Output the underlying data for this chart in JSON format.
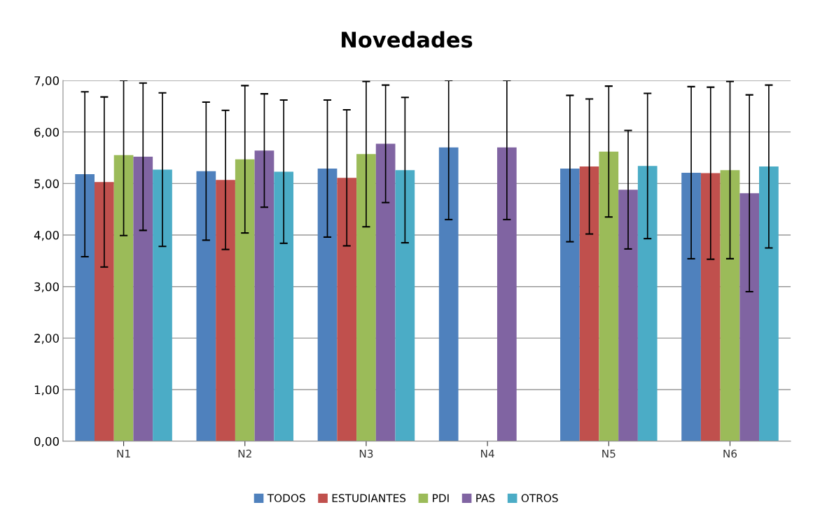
{
  "chart_data": {
    "type": "bar",
    "title": "Novedades",
    "categories": [
      "N1",
      "N2",
      "N3",
      "N4",
      "N5",
      "N6"
    ],
    "series": [
      {
        "name": "TODOS",
        "color": "#4f81bd",
        "values": [
          5.18,
          5.24,
          5.29,
          5.7,
          5.29,
          5.21
        ],
        "errors": [
          1.6,
          1.34,
          1.33,
          [
            4.3,
            7.0
          ],
          1.42,
          1.67
        ]
      },
      {
        "name": "ESTUDIANTES",
        "color": "#c0504d",
        "values": [
          5.03,
          5.07,
          5.11,
          null,
          5.33,
          5.2
        ],
        "errors": [
          1.65,
          1.35,
          1.32,
          null,
          1.31,
          1.67
        ]
      },
      {
        "name": "PDI",
        "color": "#9bbb59",
        "values": [
          5.55,
          5.47,
          5.57,
          null,
          5.62,
          5.26
        ],
        "errors": [
          [
            3.99,
            7.0
          ],
          1.43,
          1.41,
          null,
          1.27,
          1.72
        ]
      },
      {
        "name": "PAS",
        "color": "#8064a2",
        "values": [
          5.52,
          5.64,
          5.77,
          5.7,
          4.88,
          4.81
        ],
        "errors": [
          1.43,
          1.1,
          1.14,
          [
            4.3,
            7.0
          ],
          1.15,
          1.91
        ]
      },
      {
        "name": "OTROS",
        "color": "#4bacc6",
        "values": [
          5.27,
          5.23,
          5.26,
          null,
          5.34,
          5.33
        ],
        "errors": [
          1.49,
          1.39,
          1.41,
          null,
          1.41,
          1.58
        ]
      }
    ],
    "ylim": [
      0,
      7
    ],
    "yticks": [
      {
        "value": 0,
        "label": "0,00"
      },
      {
        "value": 1,
        "label": "1,00"
      },
      {
        "value": 2,
        "label": "2,00"
      },
      {
        "value": 3,
        "label": "3,00"
      },
      {
        "value": 4,
        "label": "4,00"
      },
      {
        "value": 5,
        "label": "5,00"
      },
      {
        "value": 6,
        "label": "6,00"
      },
      {
        "value": 7,
        "label": "7,00"
      }
    ],
    "grid": "y",
    "legend": "bottom"
  }
}
